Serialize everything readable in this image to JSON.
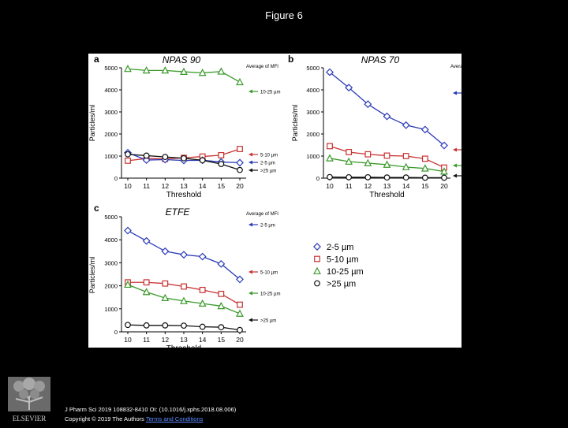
{
  "slide": {
    "title": "Figure 6",
    "citation_line1": "J Pharm Sci 2019 108832-8410 OI: (10.1016/j.xphs.2018.08.006)",
    "citation_line2_prefix": "Copyright © 2019 The Authors",
    "citation_link": "Terms and Conditions",
    "publisher_logo_text": "ELSEVIER"
  },
  "chart_data": [
    {
      "panel_letter": "a",
      "type": "line",
      "title": "NPAS 90",
      "xlabel": "Threshold",
      "ylabel": "Particles/ml",
      "legend_title": "Average of MFI",
      "categories": [
        "10",
        "11",
        "12",
        "13",
        "14",
        "15",
        "20"
      ],
      "ylim": [
        0,
        5000
      ],
      "yticks": [
        0,
        1000,
        2000,
        3000,
        4000,
        5000
      ],
      "series": [
        {
          "name": "10-25 µm",
          "marker": "triangle",
          "color": "#3a9a2a",
          "values": [
            4950,
            4880,
            4880,
            4820,
            4770,
            4830,
            4350
          ]
        },
        {
          "name": "5-10 µm",
          "marker": "square",
          "color": "#c83232",
          "values": [
            790,
            890,
            870,
            920,
            980,
            1040,
            1320
          ]
        },
        {
          "name": "2-5 µm",
          "marker": "diamond",
          "color": "#2a3ab8",
          "values": [
            1150,
            820,
            840,
            800,
            810,
            730,
            700
          ]
        },
        {
          "name": ">25 µm",
          "marker": "circle",
          "color": "#111111",
          "values": [
            1080,
            1020,
            960,
            900,
            810,
            640,
            370
          ]
        }
      ]
    },
    {
      "panel_letter": "b",
      "type": "line",
      "title": "NPAS 70",
      "xlabel": "Threshold",
      "ylabel": "Particles/ml",
      "legend_title": "Average of MFI",
      "categories": [
        "10",
        "11",
        "12",
        "13",
        "14",
        "15",
        "20"
      ],
      "ylim": [
        0,
        5000
      ],
      "yticks": [
        0,
        1000,
        2000,
        3000,
        4000,
        5000
      ],
      "series": [
        {
          "name": "2-5 µm",
          "marker": "diamond",
          "color": "#2a3ab8",
          "values": [
            4800,
            4100,
            3350,
            2800,
            2400,
            2200,
            1480
          ]
        },
        {
          "name": "5-10 µm",
          "marker": "square",
          "color": "#c83232",
          "values": [
            1450,
            1180,
            1080,
            1020,
            1000,
            880,
            480
          ]
        },
        {
          "name": "10-25 µm",
          "marker": "triangle",
          "color": "#3a9a2a",
          "values": [
            900,
            750,
            680,
            610,
            500,
            440,
            300
          ]
        },
        {
          "name": ">25 µm",
          "marker": "circle",
          "color": "#111111",
          "values": [
            50,
            40,
            40,
            30,
            30,
            20,
            20
          ]
        }
      ]
    },
    {
      "panel_letter": "c",
      "type": "line",
      "title": "ETFE",
      "xlabel": "Threshold",
      "ylabel": "Particles/ml",
      "legend_title": "Average of MFI",
      "categories": [
        "10",
        "11",
        "12",
        "13",
        "14",
        "15",
        "20"
      ],
      "ylim": [
        0,
        5000
      ],
      "yticks": [
        0,
        1000,
        2000,
        3000,
        4000,
        5000
      ],
      "series": [
        {
          "name": "2-5 µm",
          "marker": "diamond",
          "color": "#2a3ab8",
          "values": [
            4400,
            3950,
            3500,
            3350,
            3270,
            2950,
            2280
          ]
        },
        {
          "name": "5-10 µm",
          "marker": "square",
          "color": "#c83232",
          "values": [
            2150,
            2150,
            2100,
            1970,
            1820,
            1650,
            1180
          ]
        },
        {
          "name": "10-25 µm",
          "marker": "triangle",
          "color": "#3a9a2a",
          "values": [
            2050,
            1730,
            1470,
            1340,
            1230,
            1120,
            790
          ]
        },
        {
          "name": ">25 µm",
          "marker": "circle",
          "color": "#111111",
          "values": [
            300,
            280,
            280,
            270,
            220,
            200,
            80
          ]
        }
      ]
    }
  ],
  "shared_legend": [
    {
      "label": "2-5 µm",
      "marker": "diamond",
      "color": "#2a3ab8"
    },
    {
      "label": "5-10 µm",
      "marker": "square",
      "color": "#c83232"
    },
    {
      "label": "10-25 µm",
      "marker": "triangle",
      "color": "#3a9a2a"
    },
    {
      "label": ">25 µm",
      "marker": "circle",
      "color": "#111111"
    }
  ]
}
